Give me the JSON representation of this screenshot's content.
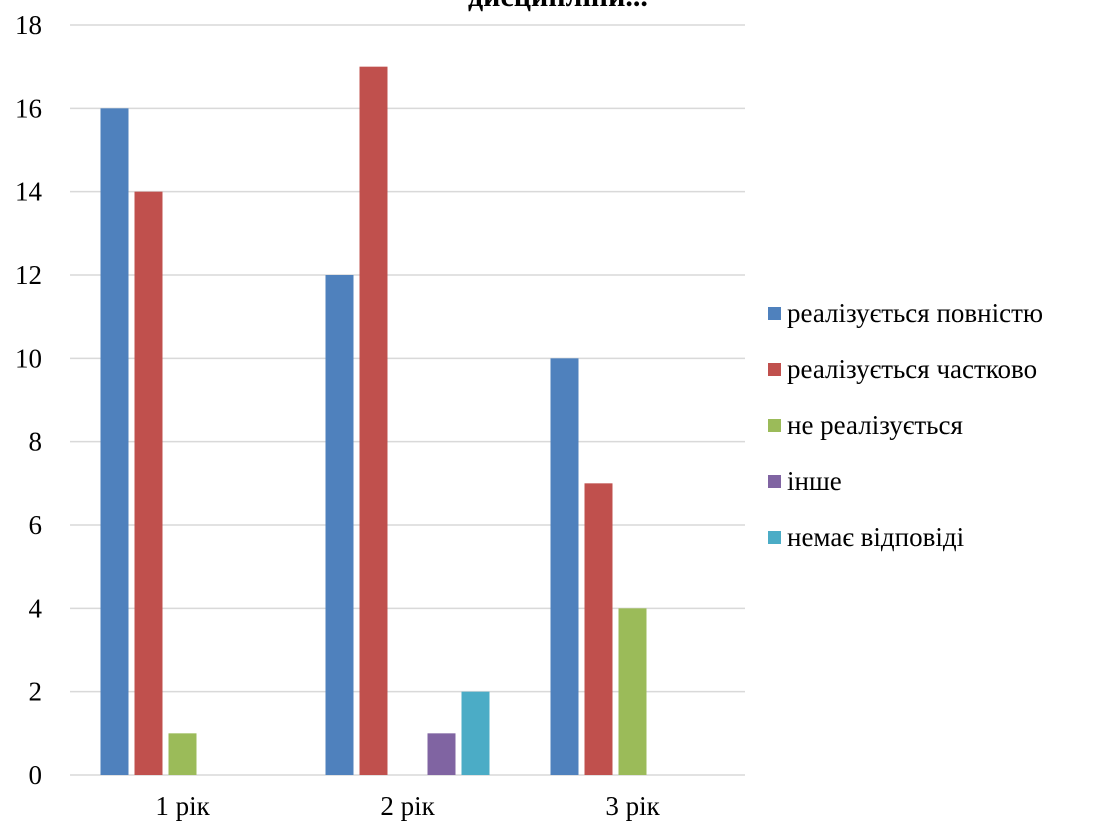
{
  "chart_data": {
    "type": "bar",
    "title": "дисципліни...",
    "categories": [
      "1 рік",
      "2 рік",
      "3 рік"
    ],
    "series": [
      {
        "name": "реалізується повністю",
        "values": [
          16,
          12,
          10
        ],
        "color": "#4F81BD"
      },
      {
        "name": "реалізується частково",
        "values": [
          14,
          17,
          7
        ],
        "color": "#C0504D"
      },
      {
        "name": "не реалізується",
        "values": [
          1,
          0,
          4
        ],
        "color": "#9BBB59"
      },
      {
        "name": "інше",
        "values": [
          0,
          1,
          0
        ],
        "color": "#8064A2"
      },
      {
        "name": "немає відповіді",
        "values": [
          0,
          2,
          0
        ],
        "color": "#4BACC6"
      }
    ],
    "ylim": [
      0,
      18
    ],
    "yticks": [
      0,
      2,
      4,
      6,
      8,
      10,
      12,
      14,
      16,
      18
    ],
    "grid": true,
    "legend": "right",
    "xlabel": "",
    "ylabel": ""
  }
}
